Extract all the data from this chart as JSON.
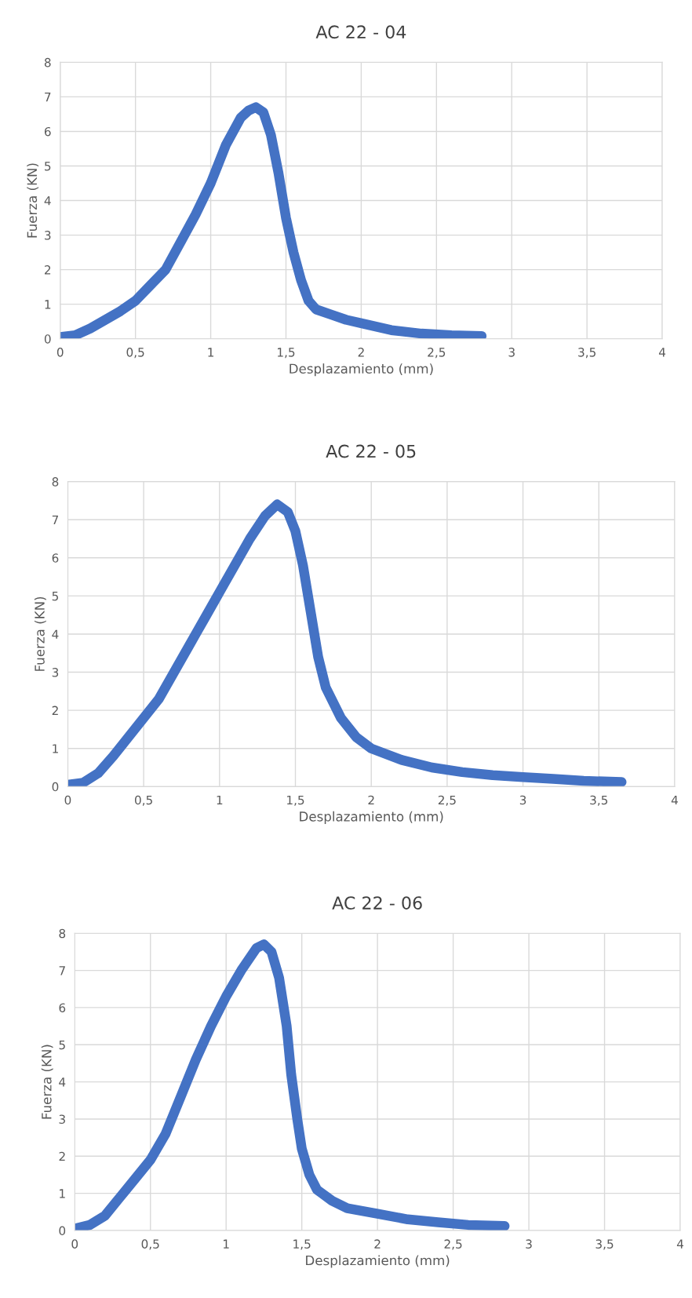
{
  "chart_data": [
    {
      "type": "line",
      "title": "AC 22 - 04",
      "xlabel": "Desplazamiento (mm)",
      "ylabel": "Fuerza (KN)",
      "xlim": [
        0,
        4
      ],
      "ylim": [
        0,
        8
      ],
      "xticks": [
        0,
        {
          "value": 0.5,
          "label": "0,5"
        },
        1,
        {
          "value": 1.5,
          "label": "1,5"
        },
        2,
        {
          "value": 2.5,
          "label": "2,5"
        },
        3,
        {
          "value": 3.5,
          "label": "3,5"
        },
        4
      ],
      "yticks": [
        0,
        1,
        2,
        3,
        4,
        5,
        6,
        7,
        8
      ],
      "grid": true,
      "legend": false,
      "marker": "none",
      "line_style": "solid",
      "series": [
        {
          "color": "#4472c4",
          "x": [
            0,
            0.1,
            0.2,
            0.3,
            0.4,
            0.5,
            0.6,
            0.7,
            0.8,
            0.9,
            1.0,
            1.1,
            1.2,
            1.25,
            1.3,
            1.35,
            1.4,
            1.45,
            1.5,
            1.55,
            1.6,
            1.65,
            1.7,
            1.8,
            1.9,
            2.0,
            2.2,
            2.4,
            2.6,
            2.8
          ],
          "values": [
            0.05,
            0.1,
            0.3,
            0.55,
            0.8,
            1.1,
            1.55,
            2.0,
            2.8,
            3.6,
            4.5,
            5.6,
            6.4,
            6.6,
            6.7,
            6.55,
            5.9,
            4.8,
            3.5,
            2.5,
            1.7,
            1.1,
            0.85,
            0.7,
            0.55,
            0.45,
            0.25,
            0.15,
            0.1,
            0.08
          ]
        }
      ]
    },
    {
      "type": "line",
      "title": "AC 22 - 05",
      "xlabel": "Desplazamiento (mm)",
      "ylabel": "Fuerza (KN)",
      "xlim": [
        0,
        4
      ],
      "ylim": [
        0,
        8
      ],
      "xticks": [
        0,
        {
          "value": 0.5,
          "label": "0,5"
        },
        1,
        {
          "value": 1.5,
          "label": "1,5"
        },
        2,
        {
          "value": 2.5,
          "label": "2,5"
        },
        3,
        {
          "value": 3.5,
          "label": "3,5"
        },
        4
      ],
      "yticks": [
        0,
        1,
        2,
        3,
        4,
        5,
        6,
        7,
        8
      ],
      "grid": true,
      "legend": false,
      "marker": "none",
      "line_style": "solid",
      "series": [
        {
          "color": "#4472c4",
          "x": [
            0,
            0.1,
            0.2,
            0.3,
            0.4,
            0.5,
            0.6,
            0.7,
            0.8,
            0.9,
            1.0,
            1.1,
            1.2,
            1.3,
            1.38,
            1.45,
            1.5,
            1.55,
            1.6,
            1.65,
            1.7,
            1.8,
            1.9,
            2.0,
            2.2,
            2.4,
            2.6,
            2.8,
            3.0,
            3.2,
            3.4,
            3.65
          ],
          "values": [
            0.05,
            0.1,
            0.35,
            0.8,
            1.3,
            1.8,
            2.3,
            3.0,
            3.7,
            4.4,
            5.1,
            5.8,
            6.5,
            7.1,
            7.4,
            7.2,
            6.7,
            5.8,
            4.6,
            3.4,
            2.6,
            1.8,
            1.3,
            1.0,
            0.7,
            0.5,
            0.38,
            0.3,
            0.25,
            0.2,
            0.15,
            0.12
          ]
        }
      ]
    },
    {
      "type": "line",
      "title": "AC 22 - 06",
      "xlabel": "Desplazamiento (mm)",
      "ylabel": "Fuerza (KN)",
      "xlim": [
        0,
        4
      ],
      "ylim": [
        0,
        8
      ],
      "xticks": [
        0,
        {
          "value": 0.5,
          "label": "0,5"
        },
        1,
        {
          "value": 1.5,
          "label": "1,5"
        },
        2,
        {
          "value": 2.5,
          "label": "2,5"
        },
        3,
        {
          "value": 3.5,
          "label": "3,5"
        },
        4
      ],
      "yticks": [
        0,
        1,
        2,
        3,
        4,
        5,
        6,
        7,
        8
      ],
      "grid": true,
      "legend": false,
      "marker": "none",
      "line_style": "solid",
      "series": [
        {
          "color": "#4472c4",
          "x": [
            0,
            0.1,
            0.2,
            0.3,
            0.4,
            0.5,
            0.6,
            0.7,
            0.8,
            0.9,
            1.0,
            1.1,
            1.2,
            1.25,
            1.3,
            1.35,
            1.4,
            1.43,
            1.47,
            1.5,
            1.55,
            1.6,
            1.7,
            1.8,
            2.0,
            2.2,
            2.4,
            2.6,
            2.84
          ],
          "values": [
            0.05,
            0.15,
            0.4,
            0.9,
            1.4,
            1.9,
            2.6,
            3.6,
            4.6,
            5.5,
            6.3,
            7.0,
            7.6,
            7.7,
            7.5,
            6.8,
            5.5,
            4.2,
            3.0,
            2.2,
            1.5,
            1.1,
            0.8,
            0.6,
            0.45,
            0.3,
            0.22,
            0.15,
            0.12
          ]
        }
      ]
    }
  ]
}
